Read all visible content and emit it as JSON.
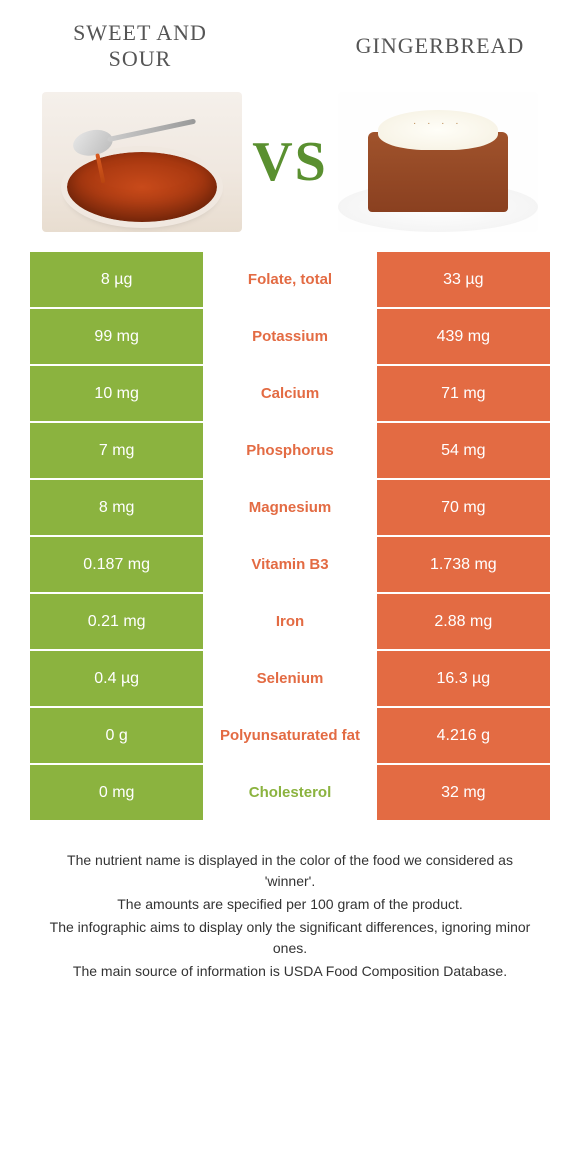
{
  "header": {
    "left_title": "Sweet and Sour",
    "right_title": "Gingerbread",
    "vs_label": "VS"
  },
  "colors": {
    "left_bar": "#8bb33f",
    "right_bar": "#e36b43",
    "vs_text": "#5a9030",
    "background": "#ffffff"
  },
  "comparison": {
    "type": "table",
    "left_food": "Sweet and Sour",
    "right_food": "Gingerbread",
    "rows": [
      {
        "left": "8 µg",
        "nutrient": "Folate, total",
        "right": "33 µg",
        "winner": "right"
      },
      {
        "left": "99 mg",
        "nutrient": "Potassium",
        "right": "439 mg",
        "winner": "right"
      },
      {
        "left": "10 mg",
        "nutrient": "Calcium",
        "right": "71 mg",
        "winner": "right"
      },
      {
        "left": "7 mg",
        "nutrient": "Phosphorus",
        "right": "54 mg",
        "winner": "right"
      },
      {
        "left": "8 mg",
        "nutrient": "Magnesium",
        "right": "70 mg",
        "winner": "right"
      },
      {
        "left": "0.187 mg",
        "nutrient": "Vitamin B3",
        "right": "1.738 mg",
        "winner": "right"
      },
      {
        "left": "0.21 mg",
        "nutrient": "Iron",
        "right": "2.88 mg",
        "winner": "right"
      },
      {
        "left": "0.4 µg",
        "nutrient": "Selenium",
        "right": "16.3 µg",
        "winner": "right"
      },
      {
        "left": "0 g",
        "nutrient": "Polyunsaturated fat",
        "right": "4.216 g",
        "winner": "right"
      },
      {
        "left": "0 mg",
        "nutrient": "Cholesterol",
        "right": "32 mg",
        "winner": "left"
      }
    ]
  },
  "footer": {
    "line1": "The nutrient name is displayed in the color of the food we considered as 'winner'.",
    "line2": "The amounts are specified per 100 gram of the product.",
    "line3": "The infographic aims to display only the significant differences, ignoring minor ones.",
    "line4": "The main source of information is USDA Food Composition Database."
  }
}
